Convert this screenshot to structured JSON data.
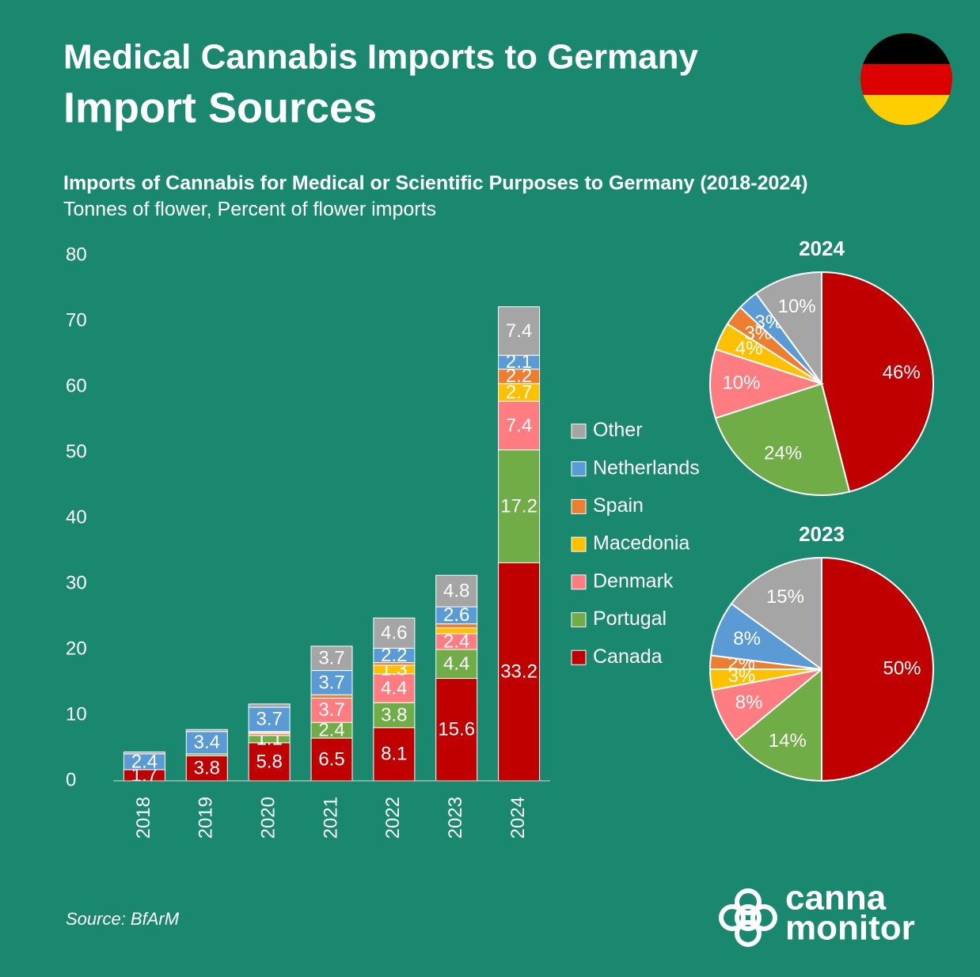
{
  "header": {
    "title": "Medical Cannabis Imports to Germany",
    "subtitle": "Import Sources"
  },
  "chart_data": [
    {
      "type": "bar",
      "stacked": true,
      "title": "Imports of Cannabis for Medical or Scientific Purposes to Germany (2018-2024)",
      "subtitle": "Tonnes of flower, Percent of flower imports",
      "categories": [
        "2018",
        "2019",
        "2020",
        "2021",
        "2022",
        "2023",
        "2024"
      ],
      "series": [
        {
          "name": "Canada",
          "color": "#c00000",
          "values": [
            1.7,
            3.8,
            5.8,
            6.5,
            8.1,
            15.6,
            33.2
          ]
        },
        {
          "name": "Portugal",
          "color": "#70ad47",
          "values": [
            0,
            0.3,
            1.1,
            2.4,
            3.8,
            4.4,
            17.2
          ]
        },
        {
          "name": "Denmark",
          "color": "#ff7c80",
          "values": [
            0,
            0,
            0.3,
            3.7,
            4.4,
            2.4,
            7.4
          ]
        },
        {
          "name": "Macedonia",
          "color": "#ffc000",
          "values": [
            0,
            0,
            0.2,
            0,
            1.3,
            0.9,
            2.7
          ]
        },
        {
          "name": "Spain",
          "color": "#ed7d31",
          "values": [
            0,
            0,
            0.1,
            0.5,
            0.4,
            0.6,
            2.2
          ]
        },
        {
          "name": "Netherlands",
          "color": "#5b9bd5",
          "values": [
            2.4,
            3.4,
            3.7,
            3.7,
            2.2,
            2.6,
            2.1
          ]
        },
        {
          "name": "Other",
          "color": "#a5a5a5",
          "values": [
            0.3,
            0.3,
            0.5,
            3.7,
            4.6,
            4.8,
            7.4
          ]
        }
      ],
      "ylim": [
        0,
        80
      ],
      "yticks": [
        0,
        10,
        20,
        30,
        40,
        50,
        60,
        70,
        80
      ],
      "grid": false
    },
    {
      "type": "pie",
      "title": "2024",
      "categories": [
        "Canada",
        "Portugal",
        "Denmark",
        "Macedonia",
        "Spain",
        "Netherlands",
        "Other"
      ],
      "colors": [
        "#c00000",
        "#70ad47",
        "#ff7c80",
        "#ffc000",
        "#ed7d31",
        "#5b9bd5",
        "#a5a5a5"
      ],
      "values": [
        46,
        24,
        10,
        4,
        3,
        3,
        10
      ],
      "value_labels": [
        "46%",
        "24%",
        "10%",
        "4%",
        "3%",
        "3%",
        "10%"
      ]
    },
    {
      "type": "pie",
      "title": "2023",
      "categories": [
        "Canada",
        "Portugal",
        "Denmark",
        "Macedonia",
        "Spain",
        "Netherlands",
        "Other"
      ],
      "colors": [
        "#c00000",
        "#70ad47",
        "#ff7c80",
        "#ffc000",
        "#ed7d31",
        "#5b9bd5",
        "#a5a5a5"
      ],
      "values": [
        50,
        14,
        8,
        3,
        2,
        8,
        15
      ],
      "value_labels": [
        "50%",
        "14%",
        "8%",
        "3%",
        "2%",
        "8%",
        "15%"
      ]
    }
  ],
  "source": "Source: BfArM",
  "logo": {
    "line1": "canna",
    "line2": "monitor"
  }
}
